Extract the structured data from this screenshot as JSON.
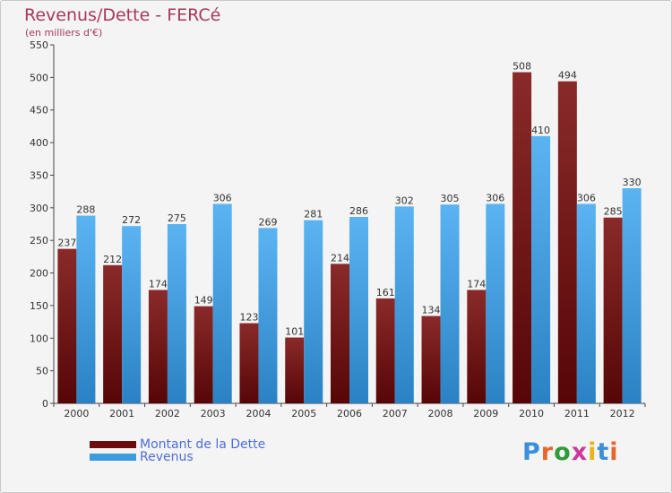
{
  "chart_data": {
    "type": "bar",
    "title": "Revenus/Dette - FERCé",
    "subtitle": "(en milliers d'€)",
    "categories": [
      "2000",
      "2001",
      "2002",
      "2003",
      "2004",
      "2005",
      "2006",
      "2007",
      "2008",
      "2009",
      "2010",
      "2011",
      "2012"
    ],
    "series": [
      {
        "name": "Montant de la Dette",
        "color": "#7a1a1a",
        "values": [
          237,
          212,
          174,
          149,
          123,
          101,
          214,
          161,
          134,
          174,
          508,
          494,
          285
        ]
      },
      {
        "name": "Revenus",
        "color": "#4aa3e3",
        "values": [
          288,
          272,
          275,
          306,
          269,
          281,
          286,
          302,
          305,
          306,
          410,
          306,
          330
        ]
      }
    ],
    "ylim": [
      0,
      550
    ],
    "yticks": [
      0,
      50,
      100,
      150,
      200,
      250,
      300,
      350,
      400,
      450,
      500,
      550
    ],
    "grid": false,
    "legend_position": "bottom-left"
  },
  "logo": {
    "letters": [
      "P",
      "r",
      "o",
      "x",
      "i",
      "t",
      "i"
    ],
    "colors": [
      "#3b8fd8",
      "#e8662c",
      "#2f9b3a",
      "#c93a9c",
      "#e8b31c",
      "#3b8fd8",
      "#e8662c"
    ]
  }
}
